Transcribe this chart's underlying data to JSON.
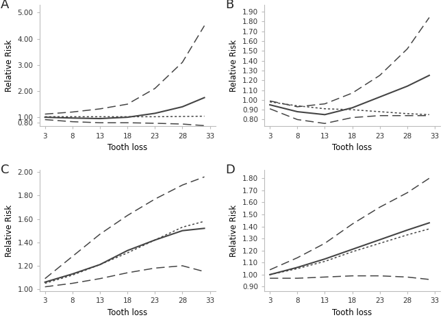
{
  "x": [
    3,
    8,
    13,
    18,
    23,
    28,
    32
  ],
  "panels": {
    "A": {
      "label": "A",
      "ylim": [
        0.65,
        5.3
      ],
      "yticks": [
        0.8,
        1.0,
        2.0,
        3.0,
        4.0,
        5.0
      ],
      "ytick_labels": [
        "0.80",
        "1.00",
        "2.00",
        "3.00",
        "4.00",
        "5.00"
      ],
      "solid": [
        1.0,
        0.97,
        0.95,
        1.0,
        1.15,
        1.4,
        1.75
      ],
      "dotted": [
        1.02,
        1.02,
        1.02,
        1.02,
        1.02,
        1.03,
        1.04
      ],
      "upper_dash": [
        1.12,
        1.2,
        1.32,
        1.5,
        2.1,
        3.1,
        4.5
      ],
      "lower_dash": [
        0.91,
        0.83,
        0.79,
        0.79,
        0.77,
        0.74,
        0.68
      ]
    },
    "B": {
      "label": "B",
      "ylim": [
        0.73,
        1.97
      ],
      "yticks": [
        0.8,
        0.9,
        1.0,
        1.1,
        1.2,
        1.3,
        1.4,
        1.5,
        1.6,
        1.7,
        1.8,
        1.9
      ],
      "ytick_labels": [
        "0.80",
        "0.90",
        "1.00",
        "1.10",
        "1.20",
        "1.30",
        "1.40",
        "1.50",
        "1.60",
        "1.70",
        "1.80",
        "1.90"
      ],
      "solid": [
        0.95,
        0.88,
        0.85,
        0.92,
        1.03,
        1.14,
        1.25
      ],
      "dotted": [
        0.98,
        0.94,
        0.91,
        0.9,
        0.88,
        0.86,
        0.85
      ],
      "upper_dash": [
        0.99,
        0.93,
        0.96,
        1.07,
        1.25,
        1.52,
        1.84
      ],
      "lower_dash": [
        0.91,
        0.8,
        0.76,
        0.82,
        0.84,
        0.84,
        0.84
      ]
    },
    "C": {
      "label": "C",
      "ylim": [
        0.98,
        2.02
      ],
      "yticks": [
        1.0,
        1.2,
        1.4,
        1.6,
        1.8,
        2.0
      ],
      "ytick_labels": [
        "1.00",
        "1.20",
        "1.40",
        "1.60",
        "1.80",
        "2.00"
      ],
      "solid": [
        1.06,
        1.13,
        1.21,
        1.33,
        1.42,
        1.5,
        1.52
      ],
      "dotted": [
        1.05,
        1.12,
        1.21,
        1.31,
        1.42,
        1.53,
        1.58
      ],
      "upper_dash": [
        1.09,
        1.28,
        1.47,
        1.63,
        1.77,
        1.89,
        1.96
      ],
      "lower_dash": [
        1.02,
        1.05,
        1.09,
        1.14,
        1.18,
        1.2,
        1.15
      ]
    },
    "D": {
      "label": "D",
      "ylim": [
        0.86,
        1.87
      ],
      "yticks": [
        0.9,
        1.0,
        1.1,
        1.2,
        1.3,
        1.4,
        1.5,
        1.6,
        1.7,
        1.8
      ],
      "ytick_labels": [
        "0.90",
        "1.00",
        "1.10",
        "1.20",
        "1.30",
        "1.40",
        "1.50",
        "1.60",
        "1.70",
        "1.80"
      ],
      "solid": [
        1.0,
        1.06,
        1.13,
        1.21,
        1.29,
        1.37,
        1.43
      ],
      "dotted": [
        1.0,
        1.05,
        1.11,
        1.19,
        1.26,
        1.33,
        1.38
      ],
      "upper_dash": [
        1.04,
        1.14,
        1.26,
        1.42,
        1.56,
        1.68,
        1.8
      ],
      "lower_dash": [
        0.97,
        0.97,
        0.98,
        0.99,
        0.99,
        0.98,
        0.96
      ]
    }
  },
  "xticks": [
    3,
    8,
    13,
    18,
    23,
    28,
    33
  ],
  "xlabel": "Tooth loss",
  "ylabel": "Relative Risk",
  "line_color": "#444444",
  "bg_color": "#ffffff"
}
